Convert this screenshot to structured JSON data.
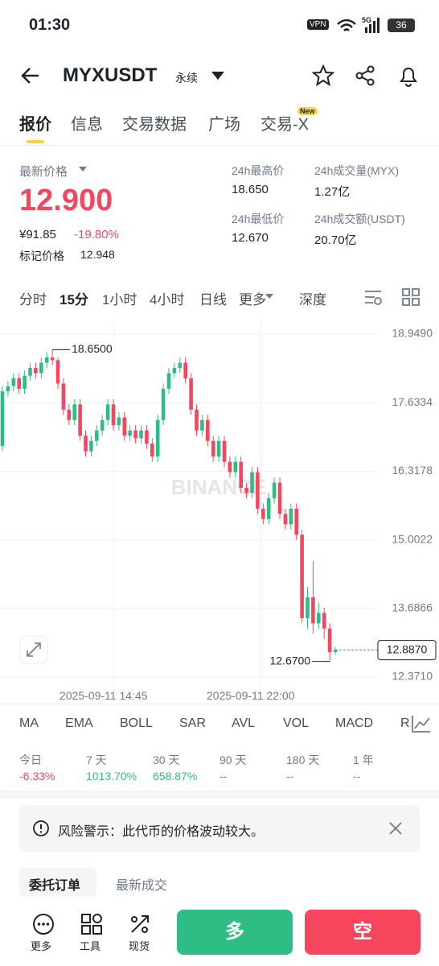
{
  "status": {
    "time": "01:30",
    "vpn": "VPN",
    "network": "5G",
    "battery": "36"
  },
  "header": {
    "symbol": "MYXUSDT",
    "contract": "永续"
  },
  "tabs": {
    "items": [
      "报价",
      "信息",
      "交易数据",
      "广场",
      "交易-X"
    ],
    "badge": "New"
  },
  "price": {
    "label": "最新价格",
    "last": "12.900",
    "cny": "¥91.85",
    "change": "-19.80%",
    "mark_label": "标记价格",
    "mark": "12.948"
  },
  "stats": [
    {
      "label": "24h最高价",
      "value": "18.650"
    },
    {
      "label": "24h成交量(MYX)",
      "value": "1.27亿"
    },
    {
      "label": "24h最低价",
      "value": "12.670"
    },
    {
      "label": "24h成交额(USDT)",
      "value": "20.70亿"
    }
  ],
  "intervals": [
    "分时",
    "15分",
    "1小时",
    "4小时",
    "日线",
    "更多",
    "深度"
  ],
  "chart": {
    "type": "candlestick",
    "watermark": "BINANCE",
    "open": [
      16.8,
      17.85,
      17.95,
      18.1,
      17.9,
      18.15,
      18.3,
      18.2,
      18.4,
      18.5,
      18.45,
      18.0,
      17.5,
      17.3,
      17.6,
      17.0,
      16.7,
      16.9,
      17.1,
      17.3,
      17.6,
      17.2,
      17.35,
      17.0,
      17.1,
      16.95,
      17.1,
      16.85,
      16.6,
      17.3,
      17.9,
      18.2,
      18.3,
      18.4,
      18.1,
      17.5,
      17.1,
      17.3,
      16.9,
      16.6,
      16.9,
      16.5,
      16.3,
      16.5,
      16.0,
      15.9,
      16.3,
      15.6,
      15.4,
      15.8,
      16.1,
      15.5,
      15.3,
      15.6,
      15.1,
      13.5,
      13.9,
      13.4,
      13.6,
      13.3,
      12.85
    ],
    "high": [
      17.95,
      18.05,
      18.2,
      18.2,
      18.25,
      18.4,
      18.4,
      18.5,
      18.6,
      18.65,
      18.5,
      18.1,
      17.6,
      17.7,
      17.7,
      17.1,
      17.0,
      17.2,
      17.4,
      17.7,
      17.7,
      17.45,
      17.45,
      17.2,
      17.2,
      17.2,
      17.2,
      16.95,
      17.4,
      18.0,
      18.3,
      18.4,
      18.5,
      18.5,
      18.2,
      17.6,
      17.4,
      17.4,
      17.0,
      17.0,
      17.0,
      16.6,
      16.6,
      16.6,
      16.1,
      16.4,
      16.4,
      15.7,
      15.9,
      16.2,
      16.2,
      15.6,
      15.7,
      15.7,
      15.2,
      14.1,
      14.6,
      13.8,
      13.7,
      13.4,
      12.95
    ],
    "low": [
      16.7,
      17.75,
      17.85,
      17.8,
      17.8,
      18.05,
      18.1,
      18.1,
      18.3,
      18.35,
      17.9,
      17.4,
      17.2,
      17.2,
      16.9,
      16.6,
      16.6,
      16.8,
      17.0,
      17.2,
      17.1,
      17.1,
      16.9,
      16.9,
      16.85,
      16.85,
      16.75,
      16.5,
      16.5,
      17.2,
      17.8,
      18.1,
      18.2,
      18.0,
      17.4,
      17.0,
      17.0,
      16.8,
      16.5,
      16.5,
      16.4,
      16.2,
      16.2,
      15.9,
      15.8,
      15.8,
      15.5,
      15.3,
      15.3,
      15.7,
      15.4,
      15.2,
      15.2,
      15.0,
      13.4,
      13.3,
      13.2,
      13.3,
      13.1,
      12.67,
      12.8
    ],
    "close": [
      17.85,
      17.95,
      18.1,
      17.9,
      18.15,
      18.3,
      18.2,
      18.4,
      18.5,
      18.45,
      18.0,
      17.5,
      17.3,
      17.6,
      17.0,
      16.7,
      16.9,
      17.1,
      17.3,
      17.6,
      17.2,
      17.35,
      17.0,
      17.1,
      16.95,
      17.1,
      16.85,
      16.6,
      17.3,
      17.9,
      18.2,
      18.3,
      18.4,
      18.1,
      17.5,
      17.1,
      17.3,
      16.9,
      16.6,
      16.9,
      16.5,
      16.3,
      16.5,
      16.0,
      15.9,
      16.3,
      15.6,
      15.4,
      15.8,
      16.1,
      15.5,
      15.3,
      15.6,
      15.1,
      13.5,
      13.9,
      13.4,
      13.6,
      13.3,
      12.85,
      12.89
    ],
    "up_color": "#2ebd85",
    "down_color": "#f6465d",
    "ylim": [
      12.232,
      19.258
    ],
    "yticks": [
      {
        "value": 18.949,
        "label": "18.9490"
      },
      {
        "value": 17.6334,
        "label": "17.6334"
      },
      {
        "value": 16.3178,
        "label": "16.3178"
      },
      {
        "value": 15.0022,
        "label": "15.0022"
      },
      {
        "value": 13.6866,
        "label": "13.6866"
      },
      {
        "value": 12.371,
        "label": "12.3710"
      }
    ],
    "grid": true,
    "high_label": {
      "value": 18.65,
      "label": "18.6500"
    },
    "low_label": {
      "value": 12.67,
      "label": "12.6700"
    },
    "current": {
      "value": 12.887,
      "label": "12.8870"
    },
    "x_labels": [
      "2025-09-11 14:45",
      "2025-09-11 22:00"
    ]
  },
  "indicators": [
    "MA",
    "EMA",
    "BOLL",
    "SAR",
    "AVL",
    "VOL",
    "MACD",
    "R"
  ],
  "performance": [
    {
      "period": "今日",
      "change": "-6.33%"
    },
    {
      "period": "7 天",
      "change": "1013.70%"
    },
    {
      "period": "30 天",
      "change": "658.87%"
    },
    {
      "period": "90 天",
      "change": "--"
    },
    {
      "period": "180 天",
      "change": "--"
    },
    {
      "period": "1 年",
      "change": "--"
    }
  ],
  "warning": "风险警示：此代币的价格波动较大。",
  "order_tabs": [
    "委托订单",
    "最新成交"
  ],
  "bottom": {
    "nav": [
      "更多",
      "工具",
      "现货"
    ],
    "long": "多",
    "short": "空"
  }
}
